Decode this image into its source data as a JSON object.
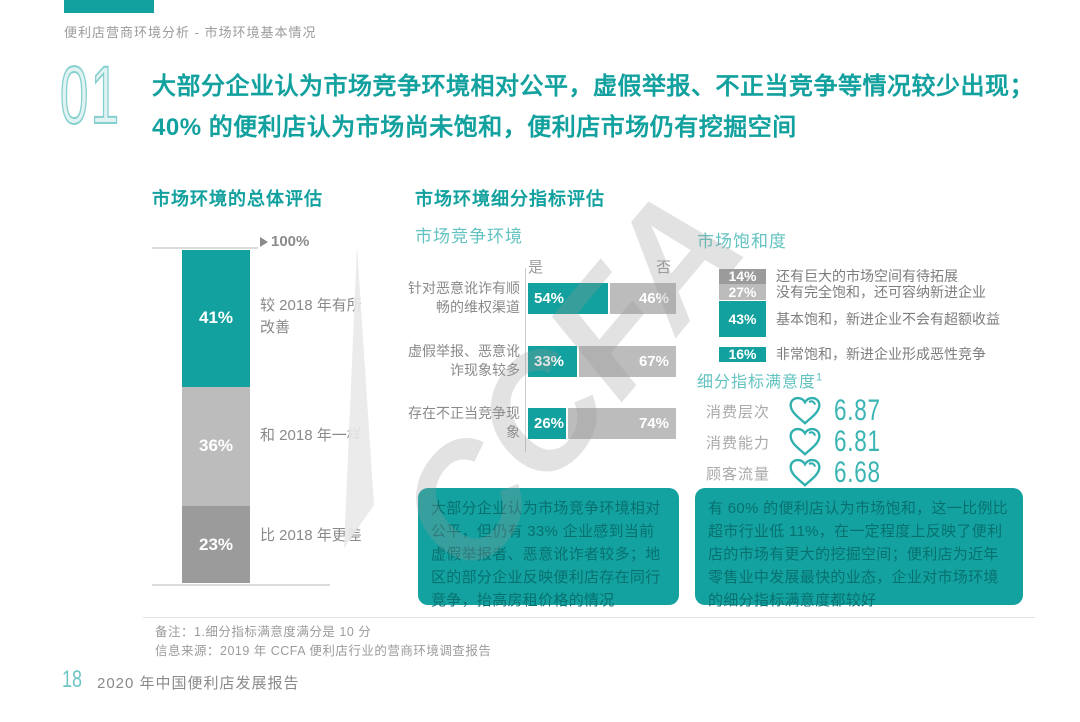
{
  "header": {
    "breadcrumb": "便利店营商环境分析 - 市场环境基本情况",
    "section_number": "01",
    "headline": [
      "大部分企业认为市场竞争环境相对公平，虚假举报、不正当竞争等情况较少出现；",
      "40% 的便利店认为市场尚未饱和，便利店市场仍有挖掘空间"
    ]
  },
  "watermark": "CCFA",
  "colors": {
    "teal": "#12a19e",
    "teal_light": "#63c3c1",
    "gray_light": "#bcbcbc",
    "gray_dark": "#9b9b9b",
    "insight_box_bg": "#13a2a0",
    "insight_box_text": "#077170"
  },
  "chart_data": [
    {
      "id": "overall_evaluation",
      "type": "bar",
      "subtype": "vertical-stacked",
      "title": "市场环境的总体评估",
      "axis_max": "100%",
      "categories": [
        "较 2018 年有所改善",
        "和 2018 年一样",
        "比 2018 年更差"
      ],
      "values": [
        41,
        36,
        23
      ],
      "value_labels": [
        "41%",
        "36%",
        "23%"
      ],
      "colors": [
        "#12a19e",
        "#bcbcbc",
        "#9b9b9b"
      ],
      "ylim": [
        0,
        100
      ]
    },
    {
      "id": "competition_environment",
      "type": "bar",
      "subtype": "horizontal-stacked",
      "section_title": "市场环境细分指标评估",
      "title": "市场竞争环境",
      "categories": [
        "针对恶意讹诈有顺畅的维权渠道",
        "虚假举报、恶意讹诈现象较多",
        "存在不正当竞争现象"
      ],
      "series": [
        {
          "name": "是",
          "values": [
            54,
            33,
            26
          ],
          "color": "#12a19e"
        },
        {
          "name": "否",
          "values": [
            46,
            67,
            74
          ],
          "color": "#bcbcbc"
        }
      ],
      "value_labels": [
        [
          "54%",
          "46%"
        ],
        [
          "33%",
          "67%"
        ],
        [
          "26%",
          "74%"
        ]
      ],
      "xlim": [
        0,
        100
      ]
    },
    {
      "id": "market_saturation",
      "type": "bar",
      "subtype": "category-chips",
      "title": "市场饱和度",
      "categories": [
        "还有巨大的市场空间有待拓展",
        "没有完全饱和，还可容纳新进企业",
        "基本饱和，新进企业不会有超额收益",
        "非常饱和，新进企业形成恶性竞争"
      ],
      "values": [
        14,
        27,
        43,
        16
      ],
      "value_labels": [
        "14%",
        "27%",
        "43%",
        "16%"
      ],
      "colors": [
        "#9b9b9b",
        "#bcbcbc",
        "#12a19e",
        "#12a19e"
      ]
    },
    {
      "id": "satisfaction_scores",
      "type": "table",
      "title": "细分指标满意度",
      "footnote_marker": "1",
      "categories": [
        "消费层次",
        "消费能力",
        "顾客流量"
      ],
      "values": [
        "6.87",
        "6.81",
        "6.68"
      ],
      "scale_note": "满分是 10 分"
    }
  ],
  "insights": {
    "competition": "大部分企业认为市场竞争环境相对公平，但仍有 33% 企业感到当前虚假举报者、恶意讹诈者较多；地区的部分企业反映便利店存在同行竞争，抬高房租价格的情况",
    "saturation": "有 60% 的便利店认为市场饱和，这一比例比超市行业低 11%，在一定程度上反映了便利店的市场有更大的挖掘空间；便利店为近年零售业中发展最快的业态，企业对市场环境的细分指标满意度都较好"
  },
  "notes": {
    "remark": "备注：1.细分指标满意度满分是 10 分",
    "source": "信息来源：2019 年 CCFA 便利店行业的营商环境调查报告"
  },
  "footer": {
    "page_number": "18",
    "report_title": "2020 年中国便利店发展报告"
  }
}
